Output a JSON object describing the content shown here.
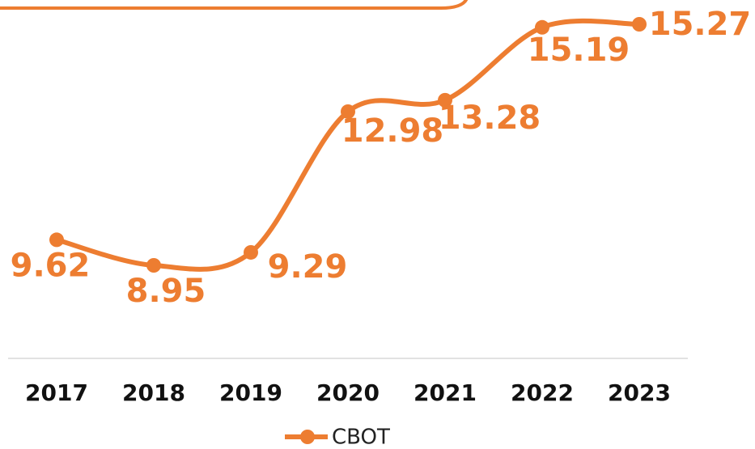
{
  "chart_data": {
    "type": "line",
    "categories": [
      "2017",
      "2018",
      "2019",
      "2020",
      "2021",
      "2022",
      "2023"
    ],
    "series": [
      {
        "name": "CBOT",
        "color": "#ED7D31",
        "values": [
          9.62,
          8.95,
          9.29,
          12.98,
          13.28,
          15.19,
          15.27
        ]
      }
    ],
    "smooth": true,
    "grid": false,
    "legend": "bottom"
  }
}
